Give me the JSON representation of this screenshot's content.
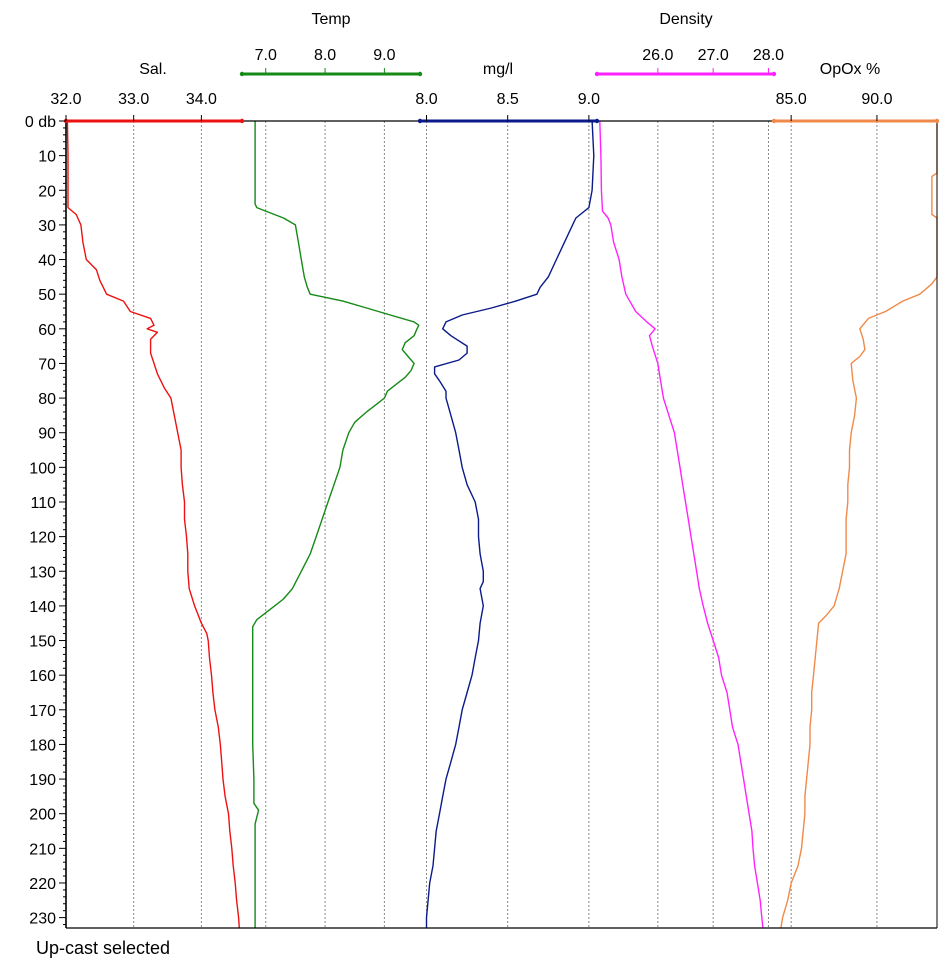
{
  "status": "Up-cast selected",
  "colors": {
    "salinity": "#ee1111",
    "temperature": "#168a16",
    "oxygen_mgl": "#0a1a8a",
    "density": "#ff22ff",
    "oxygen_pct": "#f08a4a",
    "grid": "#888888",
    "axis": "#000000"
  },
  "chart_data": {
    "type": "line",
    "y_axis": {
      "range": [
        0,
        233
      ],
      "inverted": true,
      "top_label": "0 db",
      "ticks": [
        10,
        20,
        30,
        40,
        50,
        60,
        70,
        80,
        90,
        100,
        110,
        120,
        130,
        140,
        150,
        160,
        170,
        180,
        190,
        200,
        210,
        220,
        230
      ]
    },
    "grid": "vertical-dotted",
    "x_axes": [
      {
        "key": "salinity",
        "title": "Sal.",
        "range": [
          32.0,
          34.6
        ],
        "ticks": [
          "32.0",
          "33.0",
          "34.0"
        ]
      },
      {
        "key": "temperature",
        "title": "Temp",
        "range": [
          6.6,
          9.6
        ],
        "ticks": [
          "7.0",
          "8.0",
          "9.0"
        ]
      },
      {
        "key": "oxygen_mgl",
        "title": "mg/l",
        "range": [
          7.96,
          9.05
        ],
        "ticks": [
          "8.0",
          "8.5",
          "9.0"
        ]
      },
      {
        "key": "density",
        "title": "Density",
        "range": [
          24.9,
          28.1
        ],
        "ticks": [
          "26.0",
          "27.0",
          "28.0"
        ]
      },
      {
        "key": "oxygen_pct",
        "title": "OpOx %",
        "range": [
          84.0,
          93.5
        ],
        "ticks": [
          "85.0",
          "90.0"
        ]
      }
    ],
    "series": [
      {
        "key": "salinity",
        "points": [
          [
            0,
            32.02
          ],
          [
            10,
            32.03
          ],
          [
            20,
            32.03
          ],
          [
            25,
            32.03
          ],
          [
            27,
            32.15
          ],
          [
            30,
            32.22
          ],
          [
            35,
            32.25
          ],
          [
            40,
            32.3
          ],
          [
            43,
            32.45
          ],
          [
            46,
            32.5
          ],
          [
            48,
            32.55
          ],
          [
            50,
            32.6
          ],
          [
            52,
            32.85
          ],
          [
            55,
            32.95
          ],
          [
            57,
            33.25
          ],
          [
            59,
            33.3
          ],
          [
            60,
            33.2
          ],
          [
            61,
            33.35
          ],
          [
            63,
            33.25
          ],
          [
            67,
            33.25
          ],
          [
            70,
            33.3
          ],
          [
            73,
            33.35
          ],
          [
            77,
            33.45
          ],
          [
            80,
            33.55
          ],
          [
            85,
            33.6
          ],
          [
            90,
            33.65
          ],
          [
            95,
            33.7
          ],
          [
            100,
            33.7
          ],
          [
            105,
            33.72
          ],
          [
            110,
            33.75
          ],
          [
            115,
            33.75
          ],
          [
            120,
            33.78
          ],
          [
            125,
            33.8
          ],
          [
            130,
            33.8
          ],
          [
            135,
            33.82
          ],
          [
            140,
            33.9
          ],
          [
            145,
            34.0
          ],
          [
            148,
            34.08
          ],
          [
            150,
            34.1
          ],
          [
            155,
            34.12
          ],
          [
            160,
            34.15
          ],
          [
            165,
            34.17
          ],
          [
            170,
            34.2
          ],
          [
            175,
            34.25
          ],
          [
            180,
            34.28
          ],
          [
            185,
            34.3
          ],
          [
            190,
            34.32
          ],
          [
            195,
            34.35
          ],
          [
            200,
            34.4
          ],
          [
            205,
            34.42
          ],
          [
            210,
            34.45
          ],
          [
            215,
            34.47
          ],
          [
            220,
            34.5
          ],
          [
            225,
            34.52
          ],
          [
            230,
            34.55
          ],
          [
            233,
            34.56
          ]
        ]
      },
      {
        "key": "temperature",
        "points": [
          [
            0,
            6.82
          ],
          [
            10,
            6.82
          ],
          [
            20,
            6.82
          ],
          [
            24,
            6.82
          ],
          [
            25,
            6.85
          ],
          [
            26,
            7.0
          ],
          [
            28,
            7.3
          ],
          [
            30,
            7.5
          ],
          [
            35,
            7.55
          ],
          [
            40,
            7.6
          ],
          [
            45,
            7.65
          ],
          [
            48,
            7.7
          ],
          [
            50,
            7.75
          ],
          [
            52,
            8.3
          ],
          [
            54,
            8.7
          ],
          [
            56,
            9.1
          ],
          [
            58,
            9.5
          ],
          [
            59,
            9.58
          ],
          [
            60,
            9.55
          ],
          [
            62,
            9.5
          ],
          [
            64,
            9.35
          ],
          [
            66,
            9.3
          ],
          [
            68,
            9.4
          ],
          [
            70,
            9.5
          ],
          [
            72,
            9.45
          ],
          [
            74,
            9.35
          ],
          [
            76,
            9.2
          ],
          [
            78,
            9.05
          ],
          [
            80,
            9.0
          ],
          [
            84,
            8.7
          ],
          [
            87,
            8.5
          ],
          [
            90,
            8.4
          ],
          [
            95,
            8.3
          ],
          [
            100,
            8.25
          ],
          [
            105,
            8.15
          ],
          [
            110,
            8.05
          ],
          [
            115,
            7.95
          ],
          [
            120,
            7.85
          ],
          [
            125,
            7.75
          ],
          [
            130,
            7.6
          ],
          [
            135,
            7.45
          ],
          [
            138,
            7.3
          ],
          [
            140,
            7.15
          ],
          [
            142,
            7.0
          ],
          [
            144,
            6.85
          ],
          [
            146,
            6.78
          ],
          [
            150,
            6.78
          ],
          [
            160,
            6.78
          ],
          [
            170,
            6.78
          ],
          [
            180,
            6.78
          ],
          [
            190,
            6.8
          ],
          [
            197,
            6.8
          ],
          [
            199,
            6.88
          ],
          [
            201,
            6.85
          ],
          [
            203,
            6.82
          ],
          [
            210,
            6.82
          ],
          [
            220,
            6.82
          ],
          [
            233,
            6.82
          ]
        ]
      },
      {
        "key": "oxygen_mgl",
        "points": [
          [
            0,
            9.02
          ],
          [
            10,
            9.03
          ],
          [
            20,
            9.02
          ],
          [
            25,
            9.0
          ],
          [
            28,
            8.92
          ],
          [
            30,
            8.9
          ],
          [
            35,
            8.85
          ],
          [
            40,
            8.8
          ],
          [
            45,
            8.75
          ],
          [
            48,
            8.7
          ],
          [
            50,
            8.68
          ],
          [
            52,
            8.55
          ],
          [
            54,
            8.4
          ],
          [
            56,
            8.22
          ],
          [
            58,
            8.12
          ],
          [
            60,
            8.1
          ],
          [
            62,
            8.15
          ],
          [
            65,
            8.25
          ],
          [
            67,
            8.25
          ],
          [
            69,
            8.2
          ],
          [
            71,
            8.05
          ],
          [
            73,
            8.05
          ],
          [
            75,
            8.08
          ],
          [
            78,
            8.12
          ],
          [
            80,
            8.12
          ],
          [
            85,
            8.15
          ],
          [
            90,
            8.18
          ],
          [
            95,
            8.2
          ],
          [
            100,
            8.22
          ],
          [
            105,
            8.25
          ],
          [
            110,
            8.3
          ],
          [
            115,
            8.32
          ],
          [
            120,
            8.32
          ],
          [
            125,
            8.33
          ],
          [
            130,
            8.35
          ],
          [
            133,
            8.35
          ],
          [
            135,
            8.33
          ],
          [
            140,
            8.35
          ],
          [
            145,
            8.33
          ],
          [
            150,
            8.32
          ],
          [
            155,
            8.3
          ],
          [
            160,
            8.28
          ],
          [
            165,
            8.25
          ],
          [
            170,
            8.22
          ],
          [
            175,
            8.2
          ],
          [
            180,
            8.18
          ],
          [
            185,
            8.15
          ],
          [
            190,
            8.12
          ],
          [
            195,
            8.1
          ],
          [
            200,
            8.08
          ],
          [
            205,
            8.06
          ],
          [
            210,
            8.05
          ],
          [
            215,
            8.04
          ],
          [
            220,
            8.02
          ],
          [
            225,
            8.01
          ],
          [
            230,
            8.0
          ],
          [
            233,
            8.0
          ]
        ]
      },
      {
        "key": "density",
        "points": [
          [
            0,
            24.95
          ],
          [
            10,
            24.97
          ],
          [
            20,
            24.98
          ],
          [
            26,
            25.0
          ],
          [
            28,
            25.1
          ],
          [
            30,
            25.15
          ],
          [
            35,
            25.2
          ],
          [
            40,
            25.3
          ],
          [
            45,
            25.35
          ],
          [
            50,
            25.42
          ],
          [
            55,
            25.6
          ],
          [
            58,
            25.8
          ],
          [
            60,
            25.95
          ],
          [
            62,
            25.85
          ],
          [
            65,
            25.9
          ],
          [
            70,
            26.0
          ],
          [
            75,
            26.05
          ],
          [
            80,
            26.1
          ],
          [
            85,
            26.2
          ],
          [
            90,
            26.3
          ],
          [
            95,
            26.35
          ],
          [
            100,
            26.4
          ],
          [
            105,
            26.45
          ],
          [
            110,
            26.5
          ],
          [
            115,
            26.55
          ],
          [
            120,
            26.6
          ],
          [
            125,
            26.65
          ],
          [
            130,
            26.7
          ],
          [
            135,
            26.75
          ],
          [
            140,
            26.82
          ],
          [
            145,
            26.9
          ],
          [
            150,
            27.0
          ],
          [
            155,
            27.1
          ],
          [
            160,
            27.15
          ],
          [
            165,
            27.25
          ],
          [
            170,
            27.3
          ],
          [
            175,
            27.35
          ],
          [
            180,
            27.45
          ],
          [
            185,
            27.5
          ],
          [
            190,
            27.55
          ],
          [
            195,
            27.6
          ],
          [
            200,
            27.65
          ],
          [
            205,
            27.7
          ],
          [
            210,
            27.72
          ],
          [
            215,
            27.75
          ],
          [
            220,
            27.8
          ],
          [
            225,
            27.85
          ],
          [
            230,
            27.88
          ],
          [
            233,
            27.9
          ]
        ]
      },
      {
        "key": "oxygen_pct",
        "points": [
          [
            0,
            93.5
          ],
          [
            15,
            93.5
          ],
          [
            16,
            93.2
          ],
          [
            27,
            93.2
          ],
          [
            28,
            93.5
          ],
          [
            45,
            93.5
          ],
          [
            47,
            93.2
          ],
          [
            50,
            92.5
          ],
          [
            52,
            91.5
          ],
          [
            55,
            90.5
          ],
          [
            57,
            89.5
          ],
          [
            60,
            89.0
          ],
          [
            63,
            89.2
          ],
          [
            66,
            89.3
          ],
          [
            68,
            89.0
          ],
          [
            70,
            88.5
          ],
          [
            75,
            88.6
          ],
          [
            80,
            88.8
          ],
          [
            85,
            88.7
          ],
          [
            90,
            88.5
          ],
          [
            95,
            88.4
          ],
          [
            100,
            88.4
          ],
          [
            105,
            88.3
          ],
          [
            110,
            88.3
          ],
          [
            115,
            88.2
          ],
          [
            120,
            88.2
          ],
          [
            125,
            88.2
          ],
          [
            130,
            88.0
          ],
          [
            135,
            87.8
          ],
          [
            140,
            87.5
          ],
          [
            143,
            87.0
          ],
          [
            145,
            86.6
          ],
          [
            150,
            86.5
          ],
          [
            155,
            86.4
          ],
          [
            160,
            86.3
          ],
          [
            165,
            86.2
          ],
          [
            170,
            86.2
          ],
          [
            175,
            86.1
          ],
          [
            180,
            86.1
          ],
          [
            185,
            86.0
          ],
          [
            190,
            85.9
          ],
          [
            195,
            85.8
          ],
          [
            200,
            85.8
          ],
          [
            205,
            85.7
          ],
          [
            210,
            85.6
          ],
          [
            215,
            85.4
          ],
          [
            220,
            85.0
          ],
          [
            225,
            84.8
          ],
          [
            230,
            84.5
          ],
          [
            233,
            84.4
          ]
        ]
      }
    ]
  }
}
